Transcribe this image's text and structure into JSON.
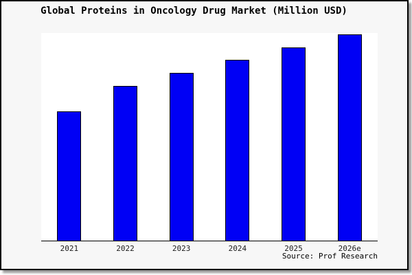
{
  "window": {
    "background_color": "#f7f7f7",
    "border_color": "#000000",
    "shadow_color": "#999999"
  },
  "chart_data": {
    "type": "bar",
    "title": "Global Proteins in Oncology Drug Market (Million USD)",
    "xlabel": "",
    "ylabel": "",
    "categories": [
      "2021",
      "2022",
      "2023",
      "2024",
      "2025",
      "2026e"
    ],
    "values_pct_of_plot_height": [
      62.3,
      74.5,
      80.8,
      87.1,
      93.0,
      99.3
    ],
    "y_axis_ticks": "none shown (no numeric scale rendered in image)",
    "legend": "none",
    "grid": "off",
    "axis_lines": "bottom only",
    "bar_color": "#0000f5",
    "bar_border_color": "#000000",
    "plot_background": "#ffffff"
  },
  "source": {
    "label": "Source: Prof Research"
  }
}
